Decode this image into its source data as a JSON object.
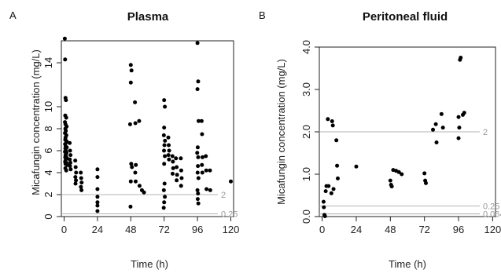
{
  "chart_data": [
    {
      "type": "scatter",
      "panel": "A",
      "title": "Plasma",
      "xlabel": "Time (h)",
      "ylabel": "Micafungin concentration (mg/L)",
      "xlim": [
        -2,
        122
      ],
      "ylim": [
        0,
        16
      ],
      "xticks": [
        "0",
        "24",
        "48",
        "72",
        "96",
        "120"
      ],
      "xtick_values": [
        0,
        24,
        48,
        72,
        96,
        120
      ],
      "yticks": [
        "0",
        "2",
        "4",
        "6",
        "8",
        "10",
        "14"
      ],
      "ytick_values": [
        0,
        2,
        4,
        6,
        8,
        10,
        14
      ],
      "reference_lines": [
        {
          "y": 2,
          "label": "2"
        },
        {
          "y": 0.25,
          "label": "0.25"
        }
      ],
      "points": [
        [
          0.5,
          16.2
        ],
        [
          0.7,
          14.3
        ],
        [
          1,
          10.8
        ],
        [
          1.3,
          10.6
        ],
        [
          0.8,
          9.2
        ],
        [
          1.5,
          9.0
        ],
        [
          0.6,
          8.6
        ],
        [
          1,
          8.4
        ],
        [
          1.8,
          8.2
        ],
        [
          0.9,
          8.0
        ],
        [
          1.2,
          7.8
        ],
        [
          0.6,
          7.6
        ],
        [
          1.6,
          7.4
        ],
        [
          1,
          7.2
        ],
        [
          0.8,
          7.0
        ],
        [
          1.4,
          6.9
        ],
        [
          2,
          6.8
        ],
        [
          0.7,
          6.6
        ],
        [
          1.1,
          6.4
        ],
        [
          1.9,
          6.3
        ],
        [
          0.9,
          6.2
        ],
        [
          1.3,
          6.0
        ],
        [
          0.6,
          5.9
        ],
        [
          1.7,
          5.8
        ],
        [
          1,
          5.6
        ],
        [
          1.4,
          5.5
        ],
        [
          0.8,
          5.4
        ],
        [
          2.1,
          5.3
        ],
        [
          1.2,
          5.2
        ],
        [
          0.7,
          5.0
        ],
        [
          1.6,
          4.9
        ],
        [
          1,
          4.8
        ],
        [
          2.2,
          4.7
        ],
        [
          0.9,
          4.4
        ],
        [
          1.5,
          4.2
        ],
        [
          4,
          6.7
        ],
        [
          4.3,
          6.0
        ],
        [
          4.6,
          5.6
        ],
        [
          4.1,
          5.2
        ],
        [
          4.5,
          4.9
        ],
        [
          4.2,
          4.6
        ],
        [
          4.7,
          4.3
        ],
        [
          8,
          5.1
        ],
        [
          8.3,
          4.5
        ],
        [
          8.6,
          4.0
        ],
        [
          8.1,
          3.6
        ],
        [
          8.5,
          3.3
        ],
        [
          8.2,
          3.0
        ],
        [
          12,
          4.0
        ],
        [
          12.3,
          3.5
        ],
        [
          12.6,
          3.1
        ],
        [
          12.1,
          2.7
        ],
        [
          12.5,
          2.4
        ],
        [
          24,
          4.3
        ],
        [
          24,
          3.6
        ],
        [
          24,
          2.5
        ],
        [
          24,
          1.8
        ],
        [
          24,
          1.3
        ],
        [
          24,
          1.0
        ],
        [
          24,
          0.5
        ],
        [
          48,
          13.8
        ],
        [
          48.5,
          13.3
        ],
        [
          48,
          12.2
        ],
        [
          47.5,
          8.4
        ],
        [
          48.3,
          4.8
        ],
        [
          48.8,
          4.5
        ],
        [
          48,
          3.2
        ],
        [
          47.8,
          0.9
        ],
        [
          51,
          10.4
        ],
        [
          51.3,
          8.5
        ],
        [
          51.6,
          4.7
        ],
        [
          51.2,
          4.0
        ],
        [
          51.5,
          3.2
        ],
        [
          54,
          8.7
        ],
        [
          54.3,
          2.8
        ],
        [
          56,
          2.4
        ],
        [
          57.5,
          2.2
        ],
        [
          72,
          10.6
        ],
        [
          72.5,
          10.0
        ],
        [
          72,
          8.1
        ],
        [
          71.8,
          7.4
        ],
        [
          72.6,
          6.9
        ],
        [
          72.2,
          6.5
        ],
        [
          71.9,
          6.0
        ],
        [
          72.5,
          5.5
        ],
        [
          72,
          4.8
        ],
        [
          72.3,
          3.0
        ],
        [
          71.8,
          2.4
        ],
        [
          72.5,
          1.8
        ],
        [
          72,
          1.3
        ],
        [
          71.7,
          0.8
        ],
        [
          75,
          7.2
        ],
        [
          75.3,
          6.5
        ],
        [
          75.6,
          6.0
        ],
        [
          75.1,
          5.6
        ],
        [
          75.5,
          5.2
        ],
        [
          78,
          5.5
        ],
        [
          78.3,
          5.0
        ],
        [
          78.5,
          4.4
        ],
        [
          78.1,
          3.9
        ],
        [
          80.5,
          5.3
        ],
        [
          81,
          4.5
        ],
        [
          81.3,
          3.8
        ],
        [
          81,
          3.3
        ],
        [
          84,
          5.3
        ],
        [
          84.3,
          4.2
        ],
        [
          84.6,
          3.5
        ],
        [
          84.2,
          2.8
        ],
        [
          96,
          15.8
        ],
        [
          96.5,
          12.3
        ],
        [
          96,
          11.6
        ],
        [
          96.8,
          8.7
        ],
        [
          96.2,
          6.3
        ],
        [
          95.8,
          5.8
        ],
        [
          96.5,
          5.4
        ],
        [
          96.3,
          4.6
        ],
        [
          96.1,
          4.0
        ],
        [
          96.7,
          3.5
        ],
        [
          96,
          2.4
        ],
        [
          96.4,
          2.1
        ],
        [
          96.2,
          1.6
        ],
        [
          96.6,
          1.2
        ],
        [
          99,
          8.7
        ],
        [
          99.3,
          7.5
        ],
        [
          99.6,
          5.4
        ],
        [
          99.2,
          4.7
        ],
        [
          99.5,
          4.0
        ],
        [
          102,
          5.5
        ],
        [
          102.3,
          4.2
        ],
        [
          102.5,
          2.5
        ],
        [
          105,
          4.2
        ],
        [
          105.2,
          2.4
        ],
        [
          120,
          3.2
        ]
      ]
    },
    {
      "type": "scatter",
      "panel": "B",
      "title": "Peritoneal fluid",
      "xlabel": "Time (h)",
      "ylabel": "Micafungin concentration (mg/L)",
      "xlim": [
        -2,
        122
      ],
      "ylim": [
        0,
        4
      ],
      "xticks": [
        "0",
        "24",
        "48",
        "72",
        "96",
        "120"
      ],
      "xtick_values": [
        0,
        24,
        48,
        72,
        96,
        120
      ],
      "yticks": [
        "0.0",
        "1.0",
        "2.0",
        "3.0",
        "4.0"
      ],
      "ytick_values": [
        0,
        1,
        2,
        3,
        4
      ],
      "reference_lines": [
        {
          "y": 2,
          "label": "2"
        },
        {
          "y": 0.25,
          "label": "0.25"
        },
        {
          "y": 0.064,
          "label": "0.064"
        }
      ],
      "points": [
        [
          1,
          0.35
        ],
        [
          1.2,
          0.22
        ],
        [
          1.6,
          0.04
        ],
        [
          2,
          0.01
        ],
        [
          2.5,
          0.6
        ],
        [
          3,
          0.72
        ],
        [
          4,
          2.3
        ],
        [
          4.5,
          0.72
        ],
        [
          7,
          2.25
        ],
        [
          7.5,
          2.15
        ],
        [
          6.5,
          0.55
        ],
        [
          8,
          0.65
        ],
        [
          10,
          1.8
        ],
        [
          10.5,
          1.2
        ],
        [
          11,
          0.9
        ],
        [
          24,
          1.18
        ],
        [
          48,
          0.85
        ],
        [
          48.5,
          0.75
        ],
        [
          49,
          0.71
        ],
        [
          50,
          1.1
        ],
        [
          52,
          1.08
        ],
        [
          54,
          1.05
        ],
        [
          56,
          1.0
        ],
        [
          72,
          1.02
        ],
        [
          72.5,
          0.85
        ],
        [
          73,
          0.79
        ],
        [
          78,
          2.05
        ],
        [
          80,
          2.18
        ],
        [
          80.5,
          1.75
        ],
        [
          84,
          2.42
        ],
        [
          85,
          2.1
        ],
        [
          96,
          2.35
        ],
        [
          96.5,
          2.1
        ],
        [
          96,
          1.85
        ],
        [
          97,
          3.7
        ],
        [
          97.5,
          3.75
        ],
        [
          99,
          2.4
        ],
        [
          100,
          2.45
        ]
      ]
    }
  ]
}
